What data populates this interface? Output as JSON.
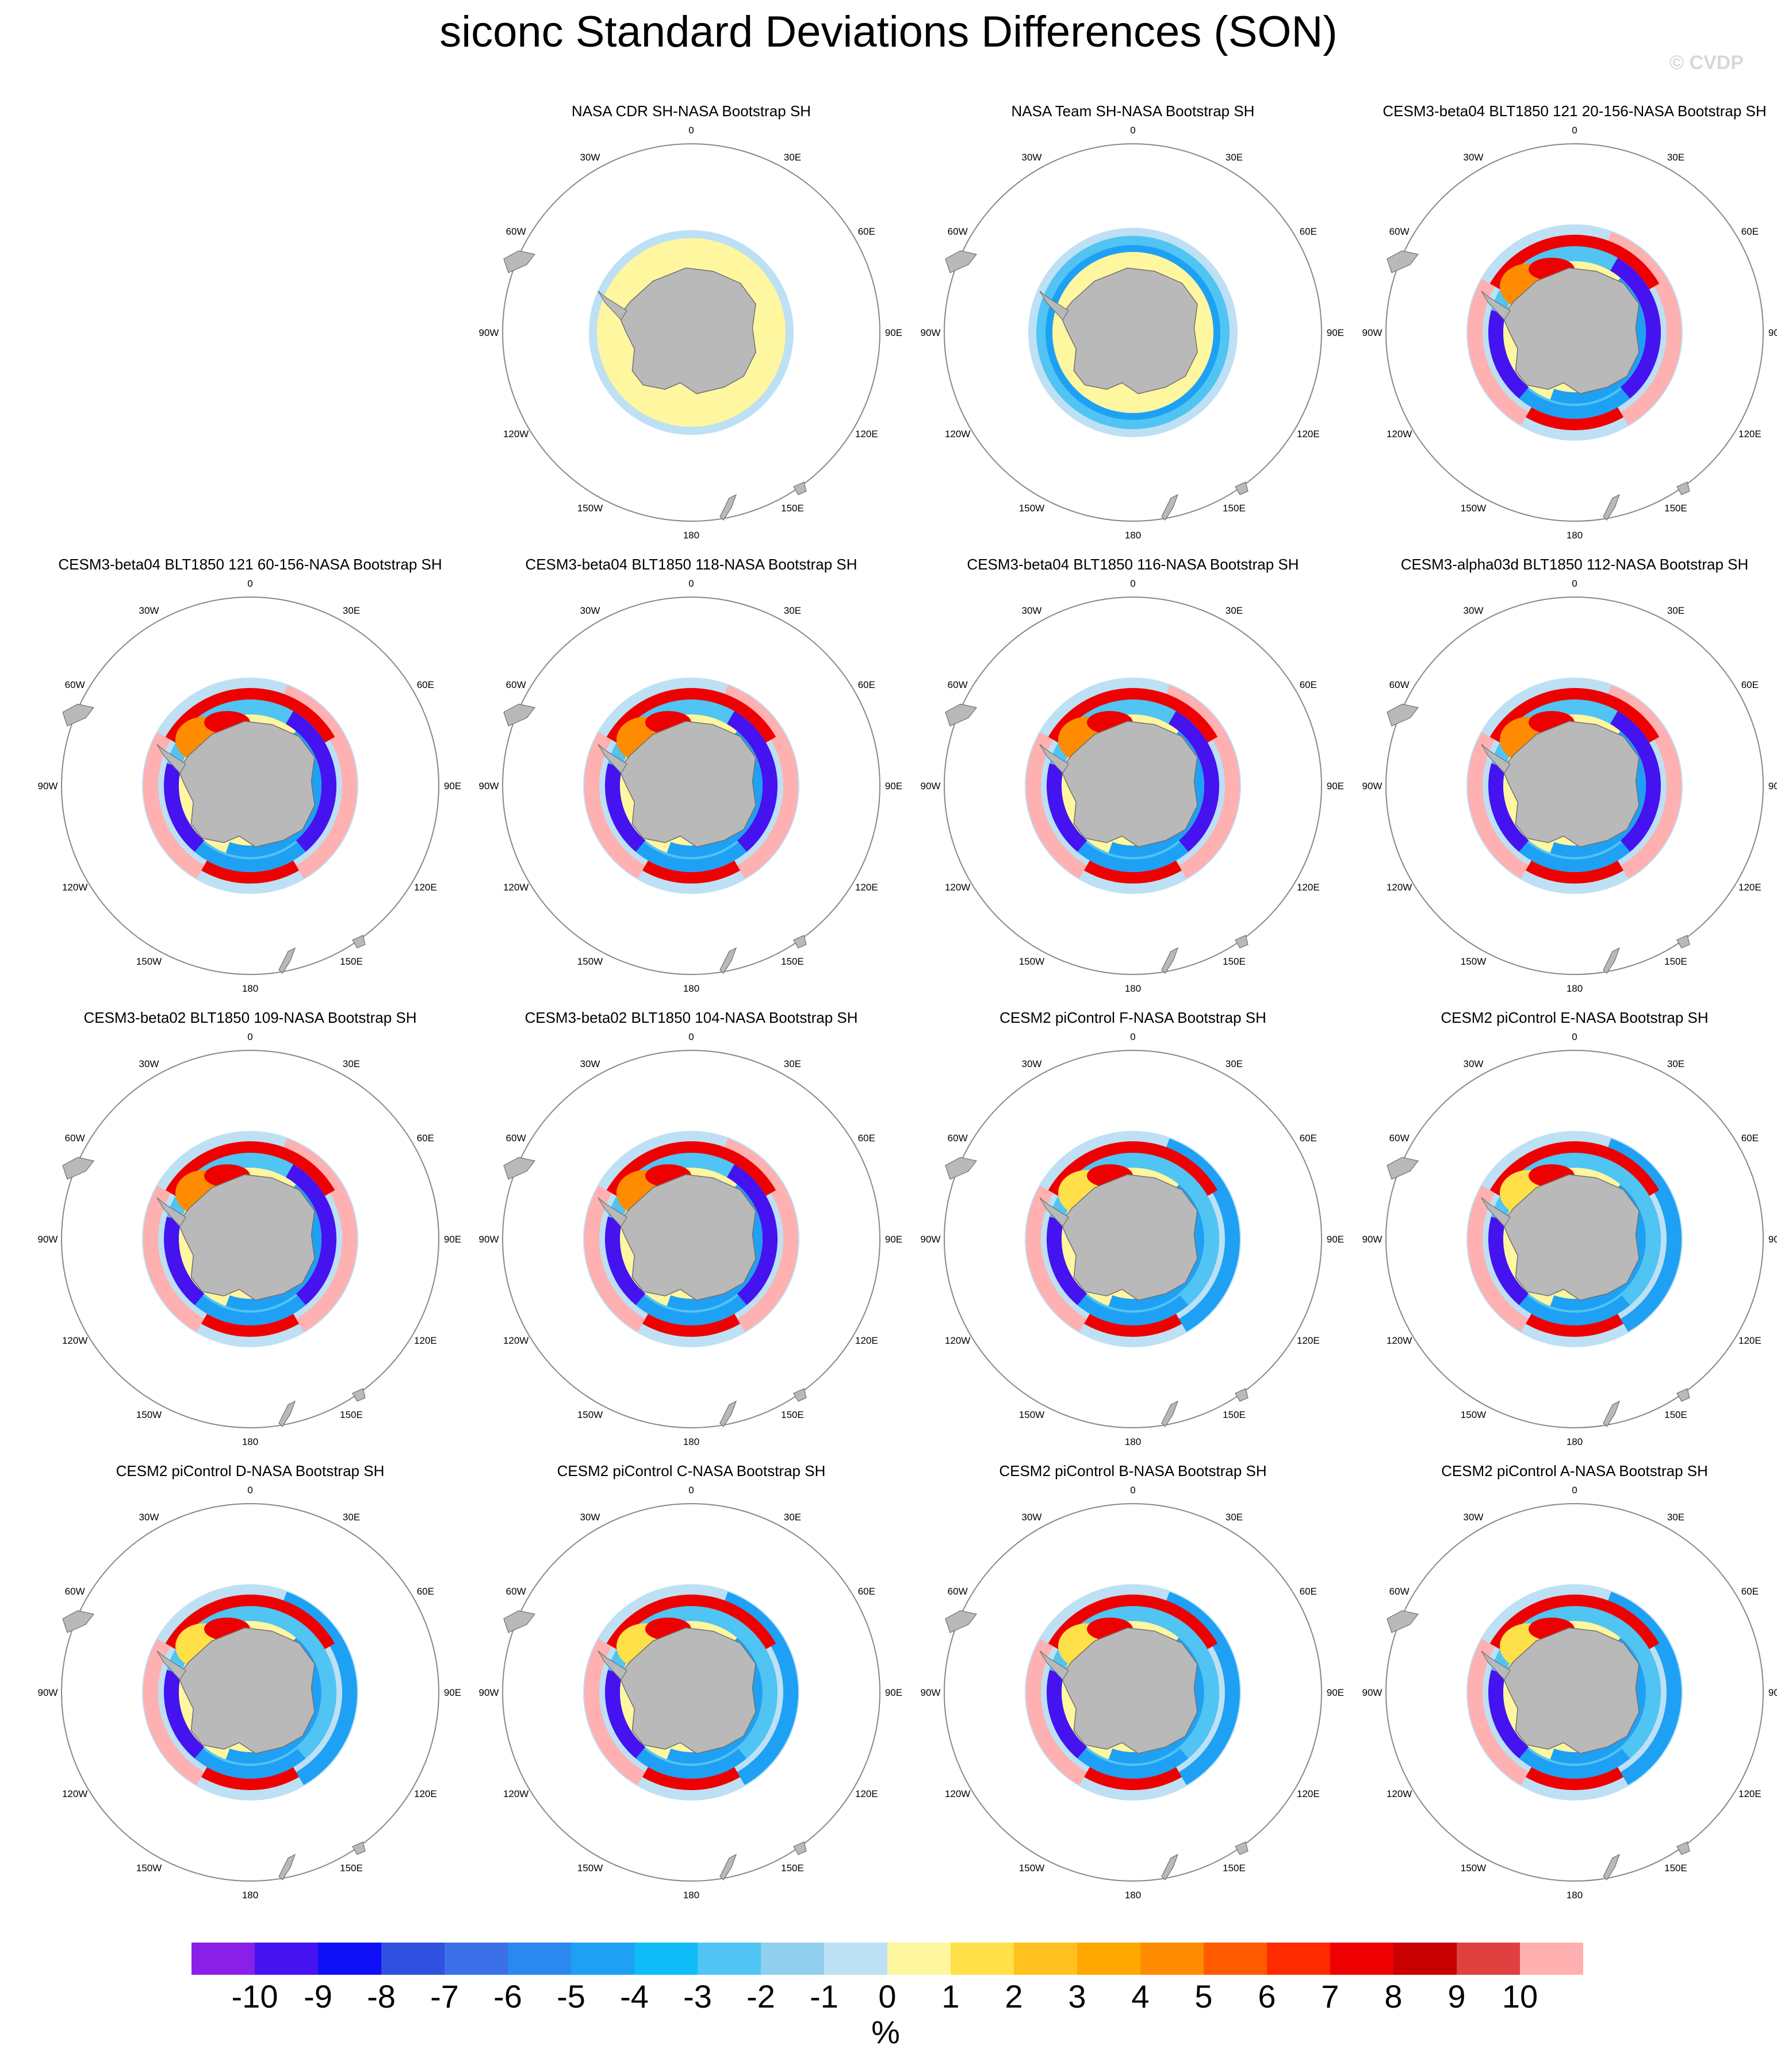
{
  "title": "siconc Standard Deviations Differences (SON)",
  "credit": "© CVDP",
  "longitude_labels": [
    "0",
    "30E",
    "60E",
    "90E",
    "120E",
    "150E",
    "180",
    "150W",
    "120W",
    "90W",
    "60W",
    "30W"
  ],
  "panels": [
    {
      "title": "",
      "pattern": "blank"
    },
    {
      "title": "NASA CDR SH-NASA Bootstrap SH",
      "pattern": "cdr"
    },
    {
      "title": "NASA Team SH-NASA Bootstrap SH",
      "pattern": "team"
    },
    {
      "title": "CESM3-beta04 BLT1850 121 20-156-NASA Bootstrap SH",
      "pattern": "model"
    },
    {
      "title": "CESM3-beta04 BLT1850 121 60-156-NASA Bootstrap SH",
      "pattern": "model"
    },
    {
      "title": "CESM3-beta04 BLT1850 118-NASA Bootstrap SH",
      "pattern": "model"
    },
    {
      "title": "CESM3-beta04 BLT1850 116-NASA Bootstrap SH",
      "pattern": "model"
    },
    {
      "title": "CESM3-alpha03d BLT1850 112-NASA Bootstrap SH",
      "pattern": "model"
    },
    {
      "title": "CESM3-beta02 BLT1850 109-NASA Bootstrap SH",
      "pattern": "model"
    },
    {
      "title": "CESM3-beta02 BLT1850 104-NASA Bootstrap SH",
      "pattern": "model"
    },
    {
      "title": "CESM2 piControl F-NASA Bootstrap SH",
      "pattern": "cesm2"
    },
    {
      "title": "CESM2 piControl E-NASA Bootstrap SH",
      "pattern": "cesm2"
    },
    {
      "title": "CESM2 piControl D-NASA Bootstrap SH",
      "pattern": "cesm2"
    },
    {
      "title": "CESM2 piControl C-NASA Bootstrap SH",
      "pattern": "cesm2"
    },
    {
      "title": "CESM2 piControl B-NASA Bootstrap SH",
      "pattern": "cesm2"
    },
    {
      "title": "CESM2 piControl A-NASA Bootstrap SH",
      "pattern": "cesm2"
    }
  ],
  "colorbar": {
    "labels": [
      "-10",
      "-9",
      "-8",
      "-7",
      "-6",
      "-5",
      "-4",
      "-3",
      "-2",
      "-1",
      "0",
      "1",
      "2",
      "3",
      "4",
      "5",
      "6",
      "7",
      "8",
      "9",
      "10"
    ],
    "colors": [
      "#8a20e8",
      "#4512f0",
      "#1010f8",
      "#3050e0",
      "#3c70e8",
      "#2a88f0",
      "#1ea0f5",
      "#10bcf8",
      "#50c4f2",
      "#90d0ee",
      "#bde0f4",
      "#fff6a0",
      "#ffe048",
      "#ffc020",
      "#ffa800",
      "#ff8c00",
      "#ff5a00",
      "#ff2a00",
      "#ee0000",
      "#c80000",
      "#e04040",
      "#ffb0b0"
    ],
    "units": "%"
  },
  "colors": {
    "land": "#b9b9b9",
    "land_edge": "#707070",
    "circle": "#888888"
  }
}
